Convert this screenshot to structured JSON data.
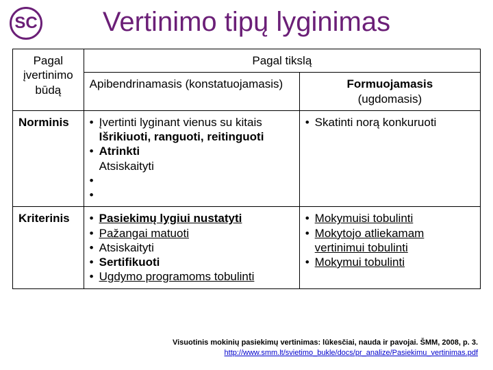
{
  "title": {
    "text": "Vertinimo tipų lyginimas",
    "color": "#6b1f77"
  },
  "logo": {
    "text": "SC",
    "color": "#6b1f77"
  },
  "table": {
    "header_rowspan_label": "Pagal įvertinimo būdą",
    "header_colspan_label": "Pagal tikslą",
    "subheaders": {
      "left": "Apibendrinamasis (konstatuojamasis)",
      "right_line1": "Formuojamasis",
      "right_line2": "(ugdomasis)"
    },
    "rows": [
      {
        "label": "Norminis",
        "left": [
          {
            "text": "Įvertinti lyginant vienus su kitais"
          },
          {
            "text": "Išrikiuoti, ranguoti, reitinguoti",
            "bold": true
          },
          {
            "text": "Atrinkti",
            "bold": true
          },
          {
            "text": "Atsiskaityti"
          }
        ],
        "right": [
          {
            "text": "Skatinti norą konkuruoti"
          }
        ]
      },
      {
        "label": "Kriterinis",
        "left": [
          {
            "text": "Pasiekimų lygiui nustatyti",
            "bold": true,
            "underline": true
          },
          {
            "text": "Pažangai matuoti",
            "underline": true
          },
          {
            "text": "Atsiskaityti"
          },
          {
            "text": "Sertifikuoti",
            "bold": true
          },
          {
            "text": "Ugdymo programoms tobulinti",
            "underline": true
          }
        ],
        "right": [
          {
            "text": "Mokymuisi tobulinti",
            "underline": true
          },
          {
            "text": "Mokytojo atliekamam vertinimui tobulinti",
            "underline": true
          },
          {
            "text": "Mokymui tobulinti",
            "underline": true
          }
        ]
      }
    ]
  },
  "footer": {
    "source": "Visuotinis mokinių pasiekimų vertinimas: lūkesčiai, nauda ir pavojai. ŠMM, 2008, p. 3.",
    "link": "http://www.smm.lt/svietimo_bukle/docs/pr_analize/Pasiekimu_vertinimas.pdf"
  }
}
